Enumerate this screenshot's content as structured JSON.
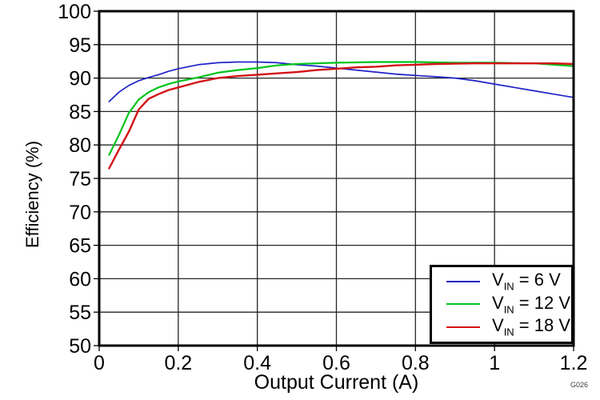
{
  "chart_data": {
    "type": "line",
    "title": "",
    "xlabel": "Output Current (A)",
    "ylabel": "Efficiency (%)",
    "xlim": [
      0,
      1.2
    ],
    "ylim": [
      50,
      100
    ],
    "x_ticks": [
      0,
      0.2,
      0.4,
      0.6,
      0.8,
      1,
      1.2
    ],
    "x_tick_labels": [
      "0",
      "0.2",
      "0.4",
      "0.6",
      "0.8",
      "1",
      "1.2"
    ],
    "y_ticks": [
      50,
      55,
      60,
      65,
      70,
      75,
      80,
      85,
      90,
      95,
      100
    ],
    "grid": true,
    "legend_position": "bottom-right",
    "colors": {
      "background": "#ffffff",
      "grid": "#262626",
      "frame": "#000000",
      "text": "#000000"
    },
    "x": [
      0.025,
      0.05,
      0.075,
      0.1,
      0.125,
      0.15,
      0.175,
      0.2,
      0.25,
      0.3,
      0.35,
      0.4,
      0.45,
      0.5,
      0.55,
      0.6,
      0.65,
      0.7,
      0.75,
      0.8,
      0.85,
      0.9,
      0.95,
      1.0,
      1.05,
      1.1,
      1.15,
      1.2
    ],
    "series": [
      {
        "name": "VIN = 6 V",
        "legend": {
          "prefix": "V",
          "sub": "IN",
          "rest": " = 6 V"
        },
        "color": "#2121c8",
        "stroke_width": 1.7,
        "values": [
          86.5,
          87.9,
          88.9,
          89.6,
          90.1,
          90.5,
          91.0,
          91.4,
          92.0,
          92.3,
          92.4,
          92.4,
          92.3,
          92.0,
          91.8,
          91.5,
          91.2,
          90.9,
          90.6,
          90.4,
          90.2,
          90.0,
          89.6,
          89.1,
          88.6,
          88.1,
          87.6,
          87.1
        ]
      },
      {
        "name": "VIN = 12 V",
        "legend": {
          "prefix": "V",
          "sub": "IN",
          "rest": " = 12 V"
        },
        "color": "#00c31c",
        "stroke_width": 2.2,
        "values": [
          78.5,
          81.5,
          84.8,
          86.8,
          87.9,
          88.6,
          89.1,
          89.5,
          90.1,
          90.8,
          91.2,
          91.5,
          91.9,
          92.1,
          92.2,
          92.3,
          92.35,
          92.4,
          92.4,
          92.4,
          92.35,
          92.3,
          92.3,
          92.3,
          92.25,
          92.2,
          92.0,
          91.8
        ]
      },
      {
        "name": "VIN = 18 V",
        "legend": {
          "prefix": "V",
          "sub": "IN",
          "rest": " = 18 V"
        },
        "color": "#d31216",
        "stroke_width": 2.4,
        "values": [
          76.5,
          79.3,
          82.0,
          85.3,
          86.9,
          87.6,
          88.2,
          88.6,
          89.4,
          90.0,
          90.3,
          90.5,
          90.7,
          90.9,
          91.2,
          91.4,
          91.6,
          91.7,
          91.9,
          92.0,
          92.1,
          92.15,
          92.2,
          92.2,
          92.2,
          92.2,
          92.2,
          92.1
        ]
      }
    ],
    "watermark": "G026"
  }
}
